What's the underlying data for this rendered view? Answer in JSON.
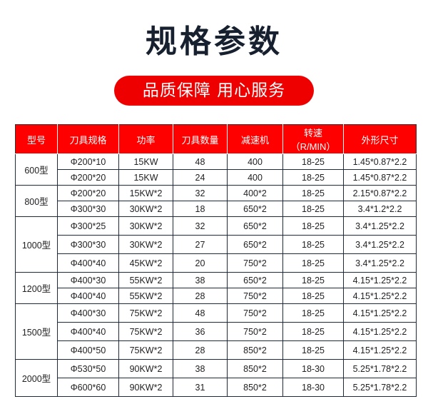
{
  "title": "规格参数",
  "slogan": "品质保障  用心服务",
  "colors": {
    "accent": "#ff0000",
    "title": "#16202e"
  },
  "table": {
    "headers": [
      "型号",
      "刀具规格",
      "功率",
      "刀具数量",
      "减速机",
      "转速（R/MIN）",
      "外形尺寸"
    ],
    "groups": [
      {
        "model": "600型",
        "rows": [
          [
            "Φ200*10",
            "15KW",
            "48",
            "400",
            "18-25",
            "1.45*0.87*2.2"
          ],
          [
            "Φ200*20",
            "15KW",
            "24",
            "400",
            "18-25",
            "1.45*0.87*2.2"
          ]
        ]
      },
      {
        "model": "800型",
        "rows": [
          [
            "Φ200*20",
            "15KW*2",
            "32",
            "400*2",
            "18-25",
            "2.15*0.87*2.2"
          ],
          [
            "Φ300*30",
            "30KW*2",
            "18",
            "650*2",
            "18-25",
            "3.4*1.2*2.2"
          ]
        ]
      },
      {
        "model": "1000型",
        "rows": [
          [
            "Φ300*25",
            "30KW*2",
            "32",
            "650*2",
            "18-25",
            "3.4*1.25*2.2"
          ],
          [
            "Φ300*30",
            "30KW*2",
            "27",
            "650*2",
            "18-25",
            "3.4*1.25*2.2"
          ],
          [
            "Φ400*40",
            "45KW*2",
            "20",
            "750*2",
            "18-25",
            "3.4*1.25*2.2"
          ]
        ]
      },
      {
        "model": "1200型",
        "rows": [
          [
            "Φ400*30",
            "55KW*2",
            "38",
            "650*2",
            "18-25",
            "4.15*1.25*2.2"
          ],
          [
            "Φ400*40",
            "55KW*2",
            "28",
            "750*2",
            "18-25",
            "4.15*1.25*2.2"
          ]
        ]
      },
      {
        "model": "1500型",
        "rows": [
          [
            "Φ400*30",
            "75KW*2",
            "48",
            "750*2",
            "18-25",
            "4.15*1.25*2.2"
          ],
          [
            "Φ400*40",
            "75KW*2",
            "36",
            "750*2",
            "18-25",
            "4.15*1.25*2.2"
          ],
          [
            "Φ400*50",
            "75KW*2",
            "28",
            "850*2",
            "18-25",
            "4.15*1.25*2.2"
          ]
        ]
      },
      {
        "model": "2000型",
        "rows": [
          [
            "Φ530*50",
            "90KW*2",
            "38",
            "850*2",
            "18-30",
            "5.25*1.78*2.2"
          ],
          [
            "Φ600*60",
            "90KW*2",
            "31",
            "850*2",
            "18-30",
            "5.25*1.78*2.2"
          ]
        ]
      }
    ]
  }
}
